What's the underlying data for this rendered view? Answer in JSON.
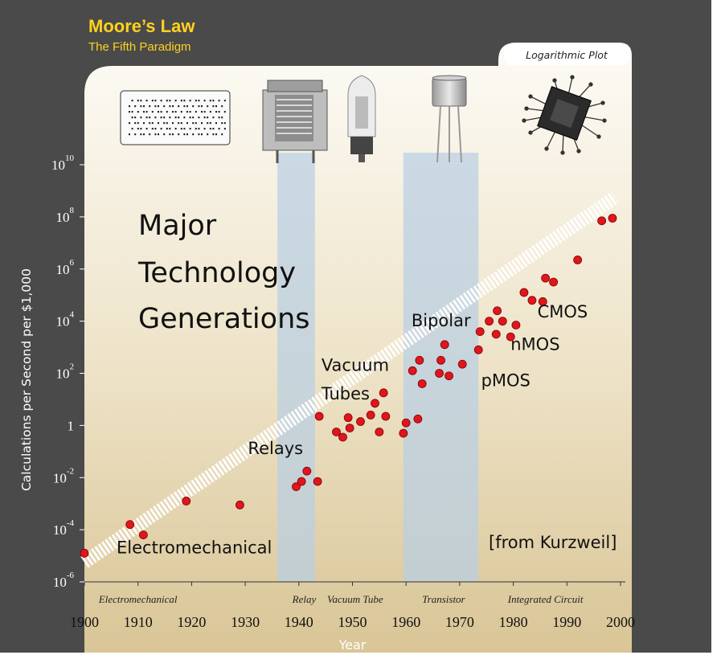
{
  "header": {
    "title": "Moore’s Law",
    "subtitle": "The Fifth Paradigm",
    "tag": "Logarithmic Plot"
  },
  "overlay": {
    "heading_lines": [
      "Major",
      "Technology",
      "Generations"
    ],
    "credit": "[from Kurzweil]"
  },
  "colors": {
    "background": "#4a4a4a",
    "title": "#ffd21e",
    "panel_top": "#fbf8f0",
    "panel_bottom": "#ddc99b",
    "band": "#b9cfe3",
    "point": "#e0161c",
    "trend": "#ffffff"
  },
  "illustrations": [
    "punch-card-icon",
    "relay-icon",
    "vacuum-tube-icon",
    "transistor-icon",
    "integrated-circuit-icon"
  ],
  "chart_data": {
    "type": "scatter",
    "xlabel": "Year",
    "ylabel": "Calculations per Second per $1,000",
    "xlim": [
      1900,
      2000
    ],
    "ylim": [
      -6,
      10
    ],
    "yscale": "log",
    "x_ticks": [
      1900,
      1910,
      1920,
      1930,
      1940,
      1950,
      1960,
      1970,
      1980,
      1990,
      2000
    ],
    "y_ticks": [
      {
        "value": -6,
        "base": "10",
        "exp": "-6"
      },
      {
        "value": -4,
        "base": "10",
        "exp": "-4"
      },
      {
        "value": -2,
        "base": "10",
        "exp": "-2"
      },
      {
        "value": 0,
        "base": "1",
        "exp": ""
      },
      {
        "value": 2,
        "base": "10",
        "exp": "2"
      },
      {
        "value": 4,
        "base": "10",
        "exp": "4"
      },
      {
        "value": 6,
        "base": "10",
        "exp": "6"
      },
      {
        "value": 8,
        "base": "10",
        "exp": "8"
      },
      {
        "value": 10,
        "base": "10",
        "exp": "10"
      }
    ],
    "eras": [
      {
        "label": "Electromechanical",
        "center": 1910
      },
      {
        "label": "Relay",
        "center": 1941
      },
      {
        "label": "Vacuum Tube",
        "center": 1950.5
      },
      {
        "label": "Transistor",
        "center": 1967
      },
      {
        "label": "Integrated Circuit",
        "center": 1986
      }
    ],
    "bands": [
      [
        1936,
        1943
      ],
      [
        1959.5,
        1973.5
      ]
    ],
    "trend": [
      [
        1900,
        -5.25
      ],
      [
        1999,
        8.75
      ]
    ],
    "annotations": [
      {
        "text": "Electromechanical",
        "x": 1906,
        "y": -4.9
      },
      {
        "text": "Relays",
        "x": 1930.5,
        "y": -1.1
      },
      {
        "text": "Vacuum",
        "x": 1944.2,
        "y": 2.1
      },
      {
        "text": "Tubes",
        "x": 1944.2,
        "y": 1.0
      },
      {
        "text": "Bipolar",
        "x": 1961,
        "y": 3.8
      },
      {
        "text": "pMOS",
        "x": 1974,
        "y": 1.5
      },
      {
        "text": "nMOS",
        "x": 1979.5,
        "y": 2.9
      },
      {
        "text": "CMOS",
        "x": 1984.5,
        "y": 4.15
      }
    ],
    "points": [
      {
        "x": 1900,
        "y": -4.9
      },
      {
        "x": 1908.5,
        "y": -3.8
      },
      {
        "x": 1911,
        "y": -4.2
      },
      {
        "x": 1919,
        "y": -2.9
      },
      {
        "x": 1929,
        "y": -3.05
      },
      {
        "x": 1939.5,
        "y": -2.35
      },
      {
        "x": 1940.5,
        "y": -2.15
      },
      {
        "x": 1941.5,
        "y": -1.75
      },
      {
        "x": 1943.5,
        "y": -2.15
      },
      {
        "x": 1943.8,
        "y": 0.35
      },
      {
        "x": 1947,
        "y": -0.25
      },
      {
        "x": 1948.2,
        "y": -0.45
      },
      {
        "x": 1949.2,
        "y": 0.3
      },
      {
        "x": 1949.5,
        "y": -0.1
      },
      {
        "x": 1951.5,
        "y": 0.15
      },
      {
        "x": 1953.4,
        "y": 0.4
      },
      {
        "x": 1954.2,
        "y": 0.85
      },
      {
        "x": 1955,
        "y": -0.25
      },
      {
        "x": 1955.8,
        "y": 1.25
      },
      {
        "x": 1956.2,
        "y": 0.35
      },
      {
        "x": 1959.5,
        "y": -0.3
      },
      {
        "x": 1960,
        "y": 0.1
      },
      {
        "x": 1961.2,
        "y": 2.1
      },
      {
        "x": 1962.2,
        "y": 0.25
      },
      {
        "x": 1962.5,
        "y": 2.5
      },
      {
        "x": 1963,
        "y": 1.6
      },
      {
        "x": 1966.2,
        "y": 2.0
      },
      {
        "x": 1966.5,
        "y": 2.5
      },
      {
        "x": 1967.2,
        "y": 3.1
      },
      {
        "x": 1968,
        "y": 1.9
      },
      {
        "x": 1970.5,
        "y": 2.35
      },
      {
        "x": 1973.5,
        "y": 2.9
      },
      {
        "x": 1973.8,
        "y": 3.6
      },
      {
        "x": 1975.5,
        "y": 4.0
      },
      {
        "x": 1976.8,
        "y": 3.5
      },
      {
        "x": 1977,
        "y": 4.4
      },
      {
        "x": 1978,
        "y": 4.0
      },
      {
        "x": 1979.5,
        "y": 3.4
      },
      {
        "x": 1980.5,
        "y": 3.85
      },
      {
        "x": 1982,
        "y": 5.1
      },
      {
        "x": 1983.5,
        "y": 4.8
      },
      {
        "x": 1985.5,
        "y": 4.75
      },
      {
        "x": 1986,
        "y": 5.65
      },
      {
        "x": 1987.5,
        "y": 5.5
      },
      {
        "x": 1992,
        "y": 6.35
      },
      {
        "x": 1996.5,
        "y": 7.85
      },
      {
        "x": 1998.5,
        "y": 7.95
      }
    ]
  }
}
